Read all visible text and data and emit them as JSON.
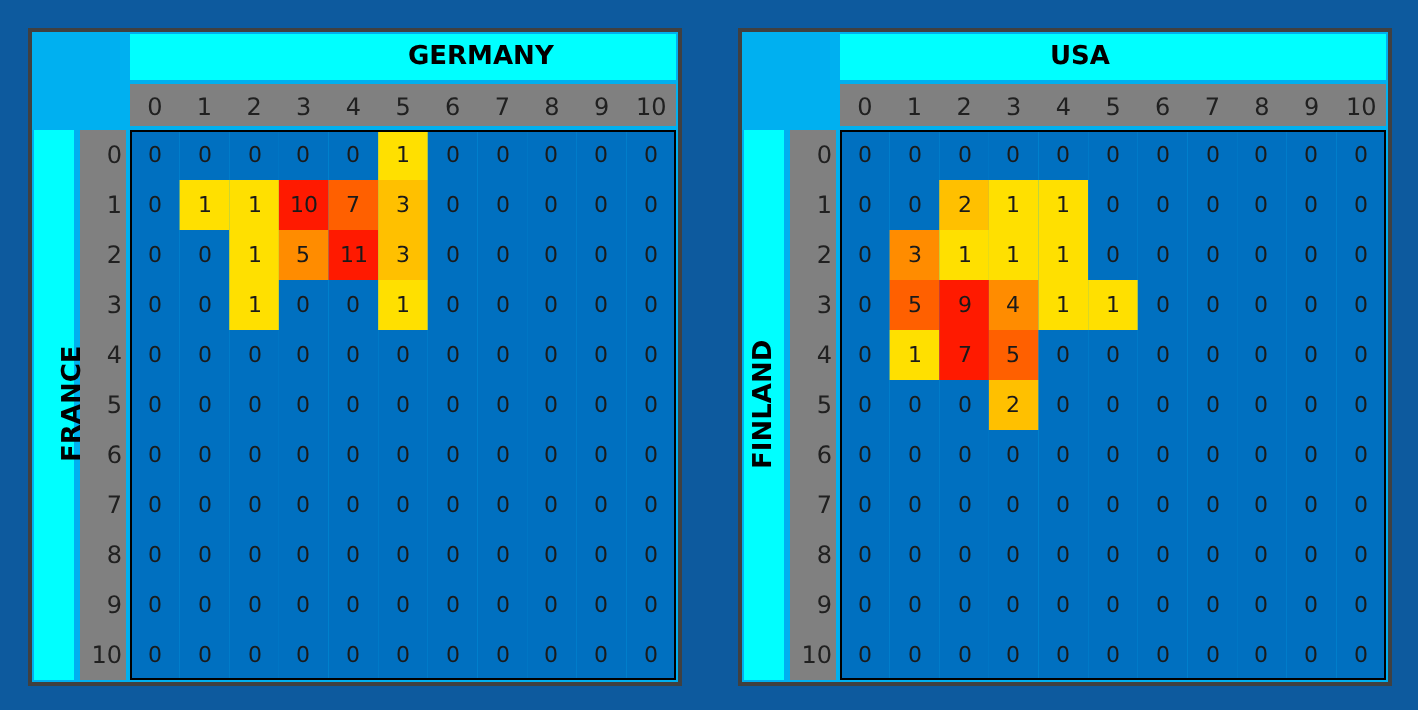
{
  "chart_data": [
    {
      "type": "heatmap",
      "xlabel": "GERMANY",
      "ylabel": "FRANCE",
      "data_labels": true,
      "categories": [
        "0",
        "1",
        "2",
        "3",
        "4",
        "5",
        "6",
        "7",
        "8",
        "9",
        "10"
      ],
      "y_categories": [
        "0",
        "1",
        "2",
        "3",
        "4",
        "5",
        "6",
        "7",
        "8",
        "9",
        "10"
      ],
      "cells": [
        [
          0,
          0,
          0,
          0,
          0,
          1,
          0,
          0,
          0,
          0,
          0
        ],
        [
          0,
          1,
          1,
          10,
          7,
          3,
          0,
          0,
          0,
          0,
          0
        ],
        [
          0,
          0,
          1,
          5,
          11,
          3,
          0,
          0,
          0,
          0,
          0
        ],
        [
          0,
          0,
          1,
          0,
          0,
          1,
          0,
          0,
          0,
          0,
          0
        ],
        [
          0,
          0,
          0,
          0,
          0,
          0,
          0,
          0,
          0,
          0,
          0
        ],
        [
          0,
          0,
          0,
          0,
          0,
          0,
          0,
          0,
          0,
          0,
          0
        ],
        [
          0,
          0,
          0,
          0,
          0,
          0,
          0,
          0,
          0,
          0,
          0
        ],
        [
          0,
          0,
          0,
          0,
          0,
          0,
          0,
          0,
          0,
          0,
          0
        ],
        [
          0,
          0,
          0,
          0,
          0,
          0,
          0,
          0,
          0,
          0,
          0
        ],
        [
          0,
          0,
          0,
          0,
          0,
          0,
          0,
          0,
          0,
          0,
          0
        ],
        [
          0,
          0,
          0,
          0,
          0,
          0,
          0,
          0,
          0,
          0,
          0
        ]
      ]
    },
    {
      "type": "heatmap",
      "xlabel": "USA",
      "ylabel": "FINLAND",
      "data_labels": true,
      "categories": [
        "0",
        "1",
        "2",
        "3",
        "4",
        "5",
        "6",
        "7",
        "8",
        "9",
        "10"
      ],
      "y_categories": [
        "0",
        "1",
        "2",
        "3",
        "4",
        "5",
        "6",
        "7",
        "8",
        "9",
        "10"
      ],
      "cells": [
        [
          0,
          0,
          0,
          0,
          0,
          0,
          0,
          0,
          0,
          0,
          0
        ],
        [
          0,
          0,
          2,
          1,
          1,
          0,
          0,
          0,
          0,
          0,
          0
        ],
        [
          0,
          3,
          1,
          1,
          1,
          0,
          0,
          0,
          0,
          0,
          0
        ],
        [
          0,
          5,
          9,
          4,
          1,
          1,
          0,
          0,
          0,
          0,
          0
        ],
        [
          0,
          1,
          7,
          5,
          0,
          0,
          0,
          0,
          0,
          0,
          0
        ],
        [
          0,
          0,
          0,
          2,
          0,
          0,
          0,
          0,
          0,
          0,
          0
        ],
        [
          0,
          0,
          0,
          0,
          0,
          0,
          0,
          0,
          0,
          0,
          0
        ],
        [
          0,
          0,
          0,
          0,
          0,
          0,
          0,
          0,
          0,
          0,
          0
        ],
        [
          0,
          0,
          0,
          0,
          0,
          0,
          0,
          0,
          0,
          0,
          0
        ],
        [
          0,
          0,
          0,
          0,
          0,
          0,
          0,
          0,
          0,
          0,
          0
        ],
        [
          0,
          0,
          0,
          0,
          0,
          0,
          0,
          0,
          0,
          0,
          0
        ]
      ]
    }
  ]
}
